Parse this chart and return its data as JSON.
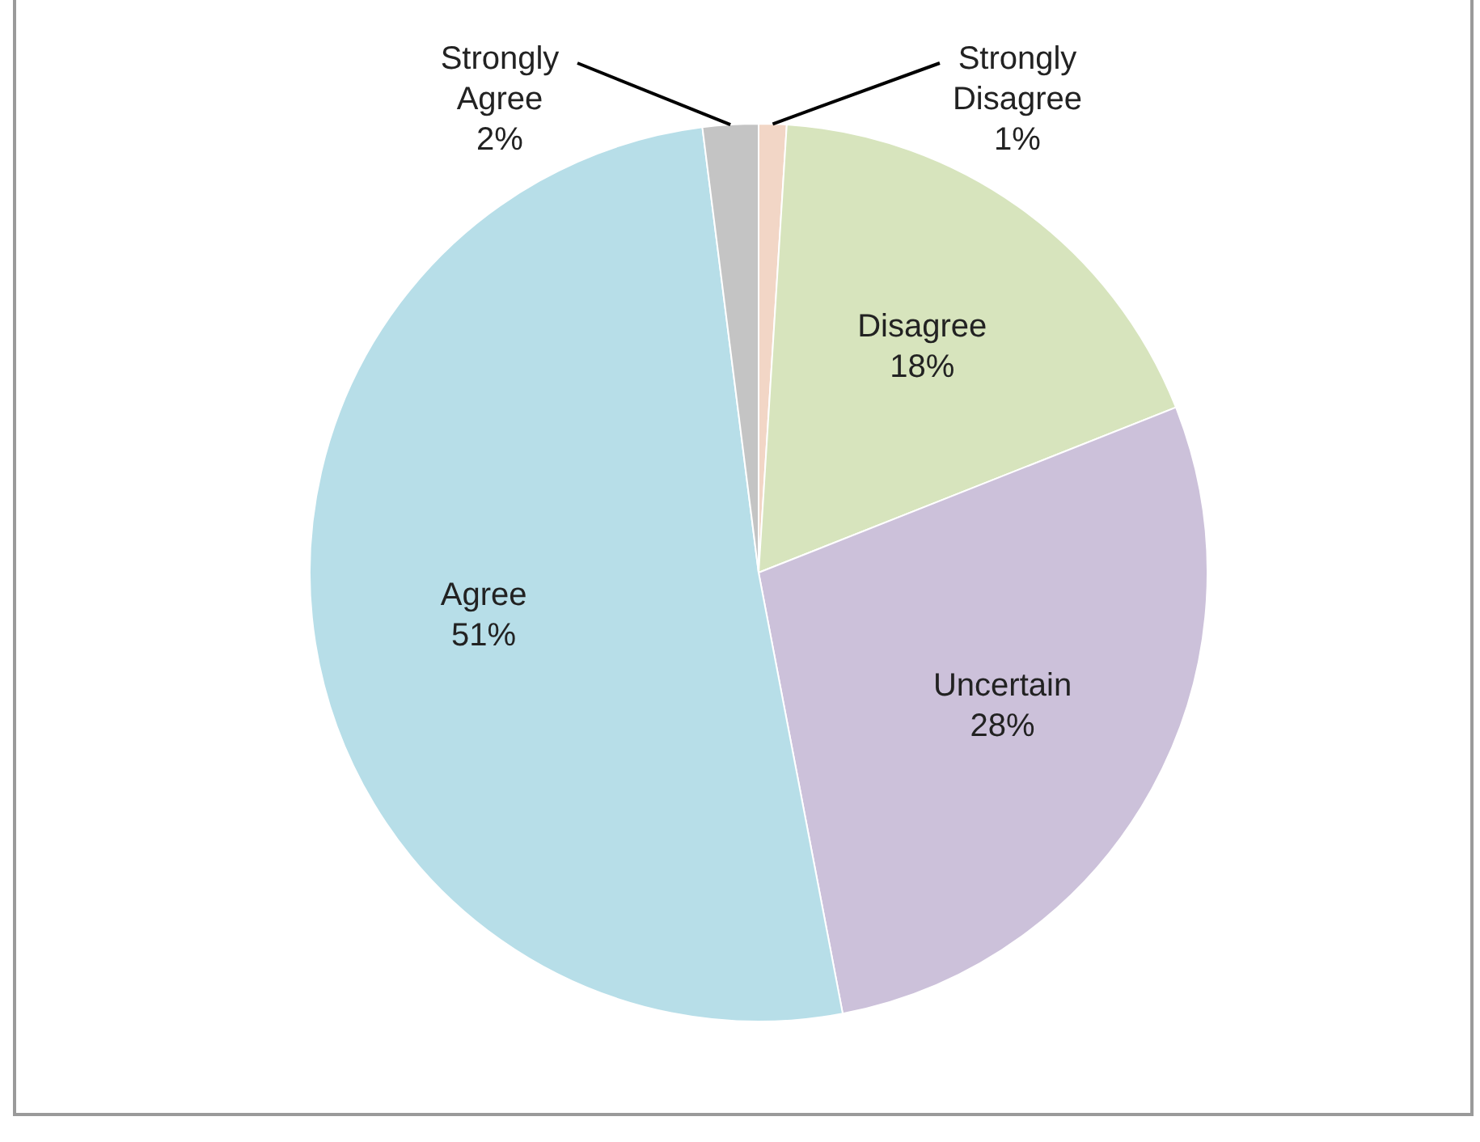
{
  "chart_data": {
    "type": "pie",
    "categories": [
      "Strongly Disagree",
      "Disagree",
      "Uncertain",
      "Agree",
      "Strongly Agree"
    ],
    "values": [
      1,
      18,
      28,
      51,
      2
    ],
    "colors": [
      "#f2d6c6",
      "#d7e4bd",
      "#ccc1da",
      "#b7dee8",
      "#c4c4c4"
    ],
    "value_labels": [
      "1%",
      "18%",
      "28%",
      "51%",
      "2%"
    ],
    "legend": false
  }
}
